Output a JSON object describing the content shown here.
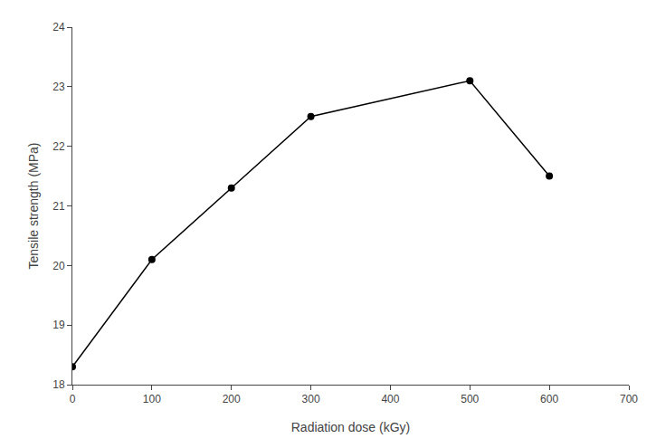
{
  "chart_data": {
    "type": "line",
    "xlabel": "Radiation dose (kGy)",
    "ylabel": "Tensile strength (MPa)",
    "x": [
      0,
      100,
      200,
      300,
      500,
      600
    ],
    "values": [
      18.3,
      20.1,
      21.3,
      22.5,
      23.1,
      21.5
    ],
    "color": "#000000",
    "marker": "circle",
    "xlim": [
      0,
      700
    ],
    "ylim": [
      18,
      24
    ],
    "xticks": [
      0,
      100,
      200,
      300,
      400,
      500,
      600,
      700
    ],
    "yticks": [
      18,
      19,
      20,
      21,
      22,
      23,
      24
    ],
    "grid": false
  }
}
